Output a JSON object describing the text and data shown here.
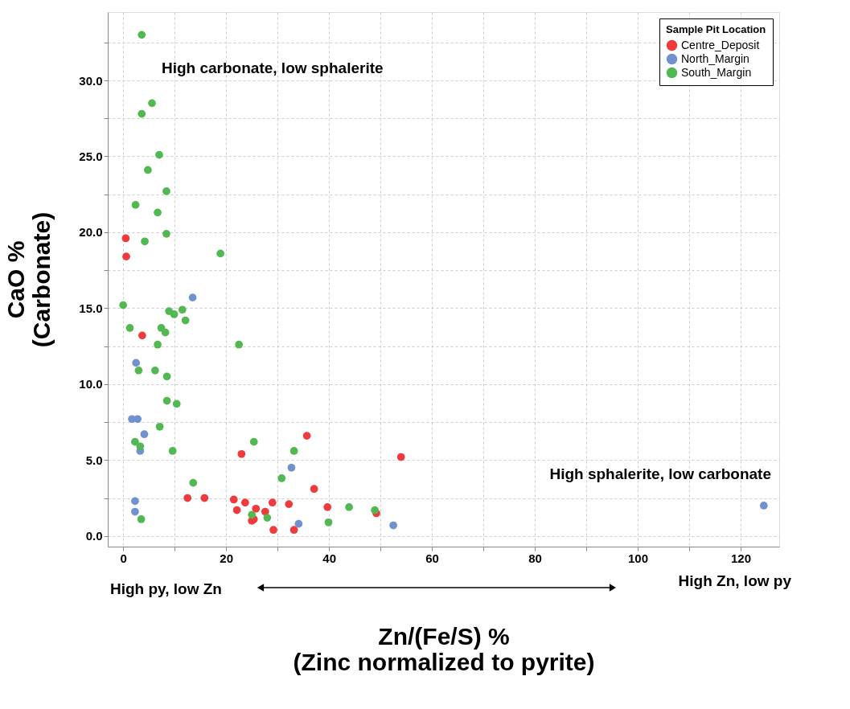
{
  "chart_data": {
    "type": "scatter",
    "xlabel": "Zn/(Fe/S) %\n(Zinc normalized to pyrite)",
    "ylabel": "CaO %\n(Carbonate)",
    "legend_title": "Sample Pit Location",
    "legend": "top right",
    "grid": true,
    "marker": "circle",
    "xlim": [
      -3,
      127.5
    ],
    "ylim": [
      -0.7,
      34.5
    ],
    "xticks": [
      0,
      {
        "value": 10,
        "label": null
      },
      20,
      {
        "value": 30,
        "label": null
      },
      40,
      {
        "value": 50,
        "label": null
      },
      60,
      {
        "value": 70,
        "label": null
      },
      80,
      {
        "value": 90,
        "label": null
      },
      100,
      {
        "value": 110,
        "label": null
      },
      120
    ],
    "yticks": [
      {
        "value": 0,
        "label": "0.0"
      },
      {
        "value": 2.5,
        "label": null
      },
      {
        "value": 5,
        "label": "5.0"
      },
      {
        "value": 7.5,
        "label": null
      },
      {
        "value": 10,
        "label": "10.0"
      },
      {
        "value": 12.5,
        "label": null
      },
      {
        "value": 15,
        "label": "15.0"
      },
      {
        "value": 17.5,
        "label": null
      },
      {
        "value": 20,
        "label": "20.0"
      },
      {
        "value": 22.5,
        "label": null
      },
      {
        "value": 25,
        "label": "25.0"
      },
      {
        "value": 27.5,
        "label": null
      },
      {
        "value": 30,
        "label": "30.0"
      },
      {
        "value": 32.5,
        "label": null
      }
    ],
    "annotations": [
      "High carbonate, low sphalerite",
      "High sphalerite, low carbonate",
      "High py, low Zn",
      "High Zn, low py"
    ],
    "series": [
      {
        "name": "Centre_Deposit",
        "color": "#ef3b3b",
        "x": [
          0.5,
          0.6,
          3.7,
          23.0,
          12.5,
          15.8,
          21.5,
          23.7,
          22.1,
          25.8,
          35.7,
          54.0,
          37.1,
          29.0,
          32.2,
          39.7,
          49.2,
          27.6,
          25.0,
          25.4,
          29.2,
          33.2
        ],
        "values": [
          19.6,
          18.4,
          13.2,
          5.4,
          2.5,
          2.5,
          2.4,
          2.2,
          1.7,
          1.8,
          6.6,
          5.2,
          3.1,
          2.2,
          2.1,
          1.9,
          1.5,
          1.6,
          1.0,
          1.1,
          0.4,
          0.4
        ]
      },
      {
        "name": "North_Margin",
        "color": "#7192cf",
        "x": [
          13.5,
          2.5,
          1.7,
          2.8,
          4.1,
          3.3,
          2.3,
          2.3,
          32.7,
          34.1,
          52.5,
          124.5
        ],
        "values": [
          15.7,
          11.4,
          7.7,
          7.7,
          6.7,
          5.6,
          2.3,
          1.6,
          4.5,
          0.8,
          0.7,
          2.0
        ]
      },
      {
        "name": "South_Margin",
        "color": "#52b952",
        "x": [
          3.6,
          5.6,
          3.6,
          7.0,
          4.8,
          8.4,
          2.4,
          6.7,
          8.4,
          4.2,
          18.9,
          0.0,
          8.9,
          9.9,
          11.5,
          12.1,
          1.3,
          7.4,
          8.2,
          6.7,
          22.5,
          3.0,
          6.2,
          8.5,
          8.5,
          10.4,
          7.1,
          2.3,
          3.3,
          9.6,
          25.4,
          13.6,
          3.5,
          33.2,
          30.8,
          43.9,
          48.9,
          25.0,
          28.0,
          39.9
        ],
        "values": [
          33.0,
          28.5,
          27.8,
          25.1,
          24.1,
          22.7,
          21.8,
          21.3,
          19.9,
          19.4,
          18.6,
          15.2,
          14.8,
          14.6,
          14.9,
          14.2,
          13.7,
          13.7,
          13.4,
          12.6,
          12.6,
          10.9,
          10.9,
          10.5,
          8.9,
          8.7,
          7.2,
          6.2,
          5.9,
          5.6,
          6.2,
          3.5,
          1.1,
          5.6,
          3.8,
          1.9,
          1.7,
          1.4,
          1.2,
          0.9
        ]
      }
    ]
  }
}
